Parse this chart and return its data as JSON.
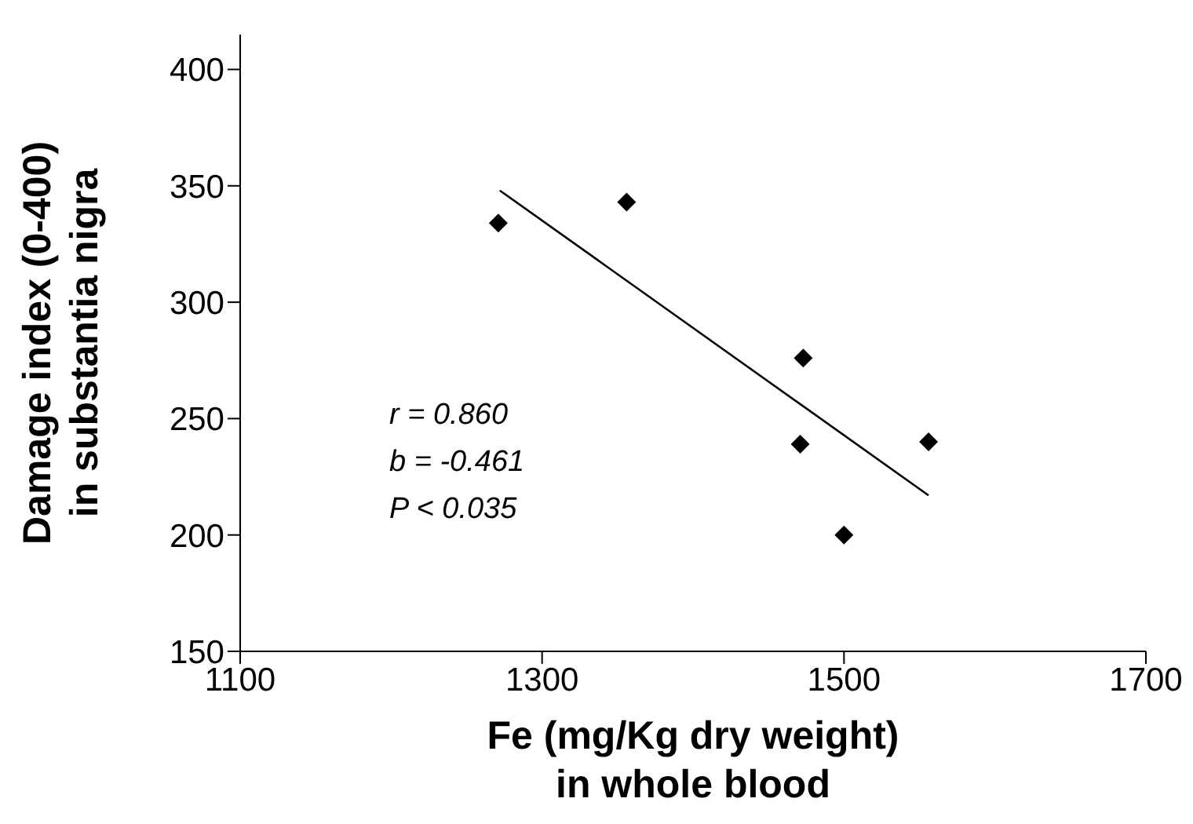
{
  "chart_data": {
    "type": "scatter",
    "xlabel": "Fe (mg/Kg dry weight)\nin whole blood",
    "ylabel": "Damage index (0-400)\nin substantia nigra",
    "marker": "diamond",
    "series": [
      {
        "x": [
          1271,
          1356,
          1473,
          1471,
          1500,
          1556
        ],
        "values": [
          334,
          343,
          276,
          239,
          200,
          240
        ],
        "color": "#000000"
      },
      {
        "type": "line",
        "marker": "none",
        "x": [
          1272,
          1556
        ],
        "values": [
          348,
          217
        ],
        "color": "#000000"
      }
    ],
    "xlim": [
      1100,
      1700
    ],
    "xticks": [
      1100,
      1300,
      1500,
      1700
    ],
    "ylim": [
      150,
      415
    ],
    "yticks": [
      150,
      200,
      250,
      300,
      350,
      400
    ],
    "annotations": [
      "r = 0.860",
      "b = -0.461",
      "P < 0.035"
    ]
  }
}
